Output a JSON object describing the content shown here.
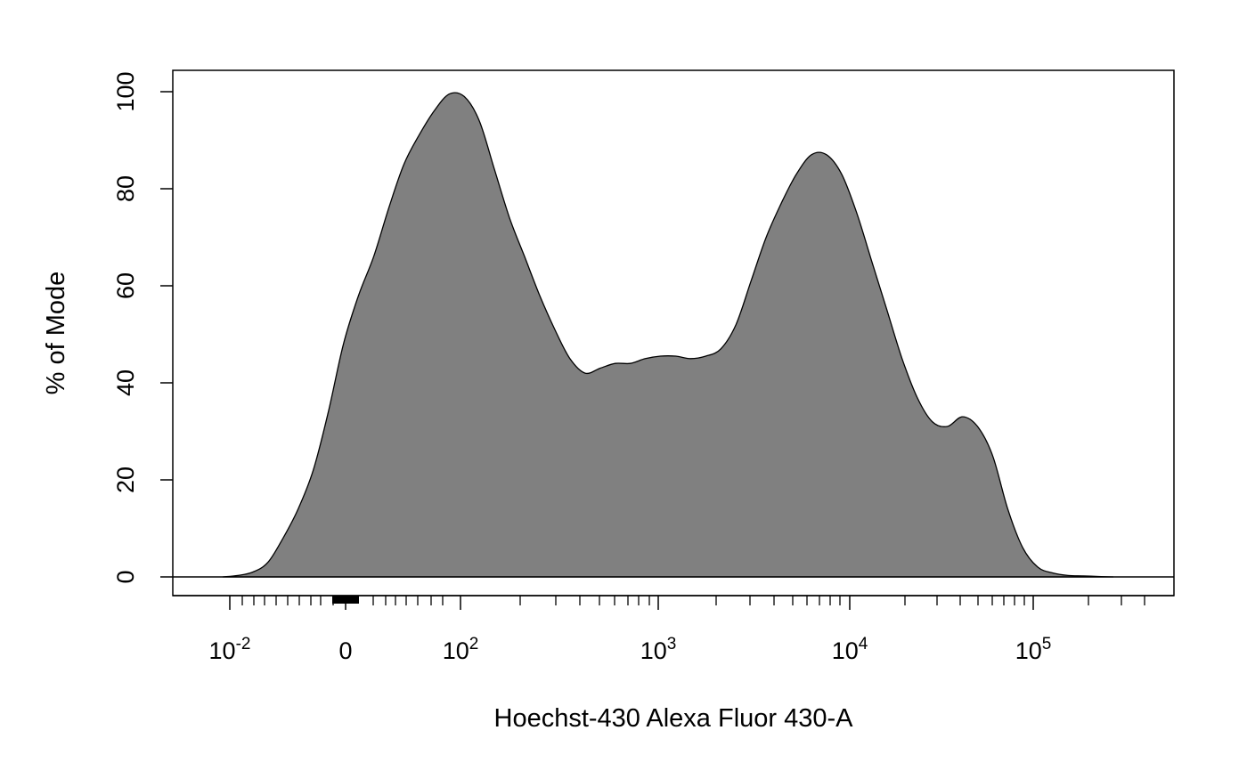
{
  "chart_data": {
    "type": "area",
    "title": "",
    "xlabel": "Hoechst-430 Alexa Fluor 430-A",
    "ylabel": "% of Mode",
    "x_scale": "biexponential (logicle)",
    "y_scale": "linear",
    "ylim": [
      -4,
      104
    ],
    "grid": false,
    "legend": "none",
    "fill_color": "#808080",
    "line_color": "#000000",
    "y_ticks": [
      "0",
      "20",
      "40",
      "60",
      "80",
      "100"
    ],
    "x_ticks": [
      {
        "label_base": "10",
        "label_exp": "-2"
      },
      {
        "label_base": "0",
        "label_exp": ""
      },
      {
        "label_base": "10",
        "label_exp": "2"
      },
      {
        "label_base": "10",
        "label_exp": "3"
      },
      {
        "label_base": "10",
        "label_exp": "4"
      },
      {
        "label_base": "10",
        "label_exp": "5"
      }
    ],
    "series": [
      {
        "values": [
          0,
          0.3,
          1,
          3,
          8,
          14,
          22,
          34,
          48,
          58,
          66,
          76,
          85,
          91,
          96,
          99.5,
          99,
          94,
          84,
          74,
          66,
          58,
          51,
          45,
          42,
          43,
          44,
          44,
          45,
          45.5,
          45.5,
          45,
          45.5,
          47,
          52,
          61,
          70,
          77,
          83,
          87,
          87,
          83,
          75,
          65,
          55,
          45,
          37,
          32,
          31,
          33,
          31,
          25,
          14,
          6,
          2,
          0.8,
          0.3,
          0.2,
          0.1,
          0
        ]
      }
    ]
  }
}
